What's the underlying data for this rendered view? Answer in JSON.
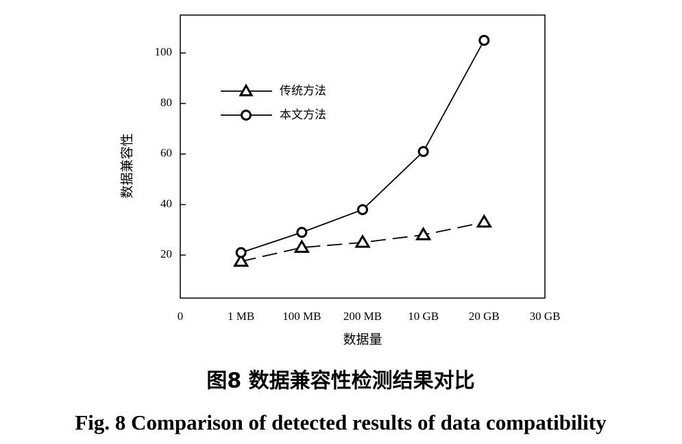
{
  "chart_data": {
    "type": "line",
    "title": "图8  数据兼容性检测结果对比",
    "subtitle": "Fig. 8  Comparison of detected results of data compatibility",
    "x_label": "数据量",
    "y_label": "数据兼容性",
    "categories": [
      "0",
      "1 MB",
      "100 MB",
      "200 MB",
      "10 GB",
      "20 GB",
      "30 GB"
    ],
    "series": [
      {
        "name": "传统方法",
        "color": "#000000",
        "style": "dashed",
        "marker": "triangle",
        "values": [
          null,
          17.5,
          23,
          25,
          28,
          33,
          null
        ]
      },
      {
        "name": "本文方法",
        "color": "#000000",
        "style": "solid",
        "marker": "circle",
        "values": [
          null,
          21,
          29,
          38,
          61,
          105,
          null
        ]
      }
    ],
    "ylim": [
      3,
      115
    ],
    "yticks": [
      20,
      40,
      60,
      80,
      100
    ],
    "grid": false,
    "legend": "upper left"
  }
}
